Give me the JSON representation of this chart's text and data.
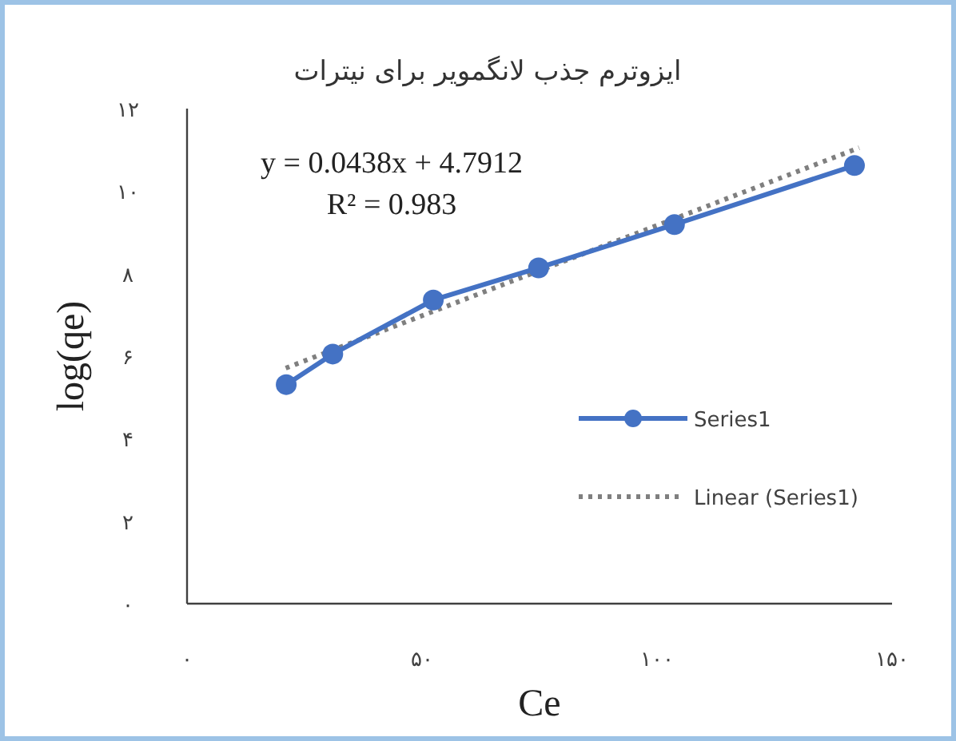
{
  "chart_data": {
    "type": "line",
    "title": "ایزوترم جذب لانگمویر برای نیترات",
    "xlabel": "Ce",
    "ylabel": "log(qe)",
    "xlim": [
      0,
      150
    ],
    "xticks": [
      {
        "value": 0,
        "label": "۰"
      },
      {
        "value": 50,
        "label": "۵۰"
      },
      {
        "value": 100,
        "label": "۱۰۰"
      },
      {
        "value": 150,
        "label": "۱۵۰"
      }
    ],
    "ylim": [
      0,
      12
    ],
    "yticks": [
      {
        "value": 0,
        "label": "۰"
      },
      {
        "value": 2,
        "label": "۲"
      },
      {
        "value": 4,
        "label": "۴"
      },
      {
        "value": 6,
        "label": "۶"
      },
      {
        "value": 8,
        "label": "۸"
      },
      {
        "value": 10,
        "label": "۱۰"
      },
      {
        "value": 12,
        "label": "۱۲"
      }
    ],
    "series": [
      {
        "name": "Series1",
        "color": "#4472c4",
        "marker": "circle",
        "line_style": "solid",
        "x": [
          21.1,
          31,
          52.4,
          74.8,
          103.7,
          142
        ],
        "values": [
          5.31,
          6.05,
          7.36,
          8.14,
          9.19,
          10.62
        ]
      },
      {
        "name": "Linear (Series1)",
        "type": "line",
        "color": "#7f7f7f",
        "marker": "none",
        "line_style": "dotted",
        "x": [
          21,
          143
        ],
        "values": [
          5.71,
          11.05
        ]
      }
    ],
    "annotations": [
      "y = 0.0438x  + 4.7912",
      "R² = 0.983"
    ],
    "grid": false,
    "legend": "right"
  }
}
